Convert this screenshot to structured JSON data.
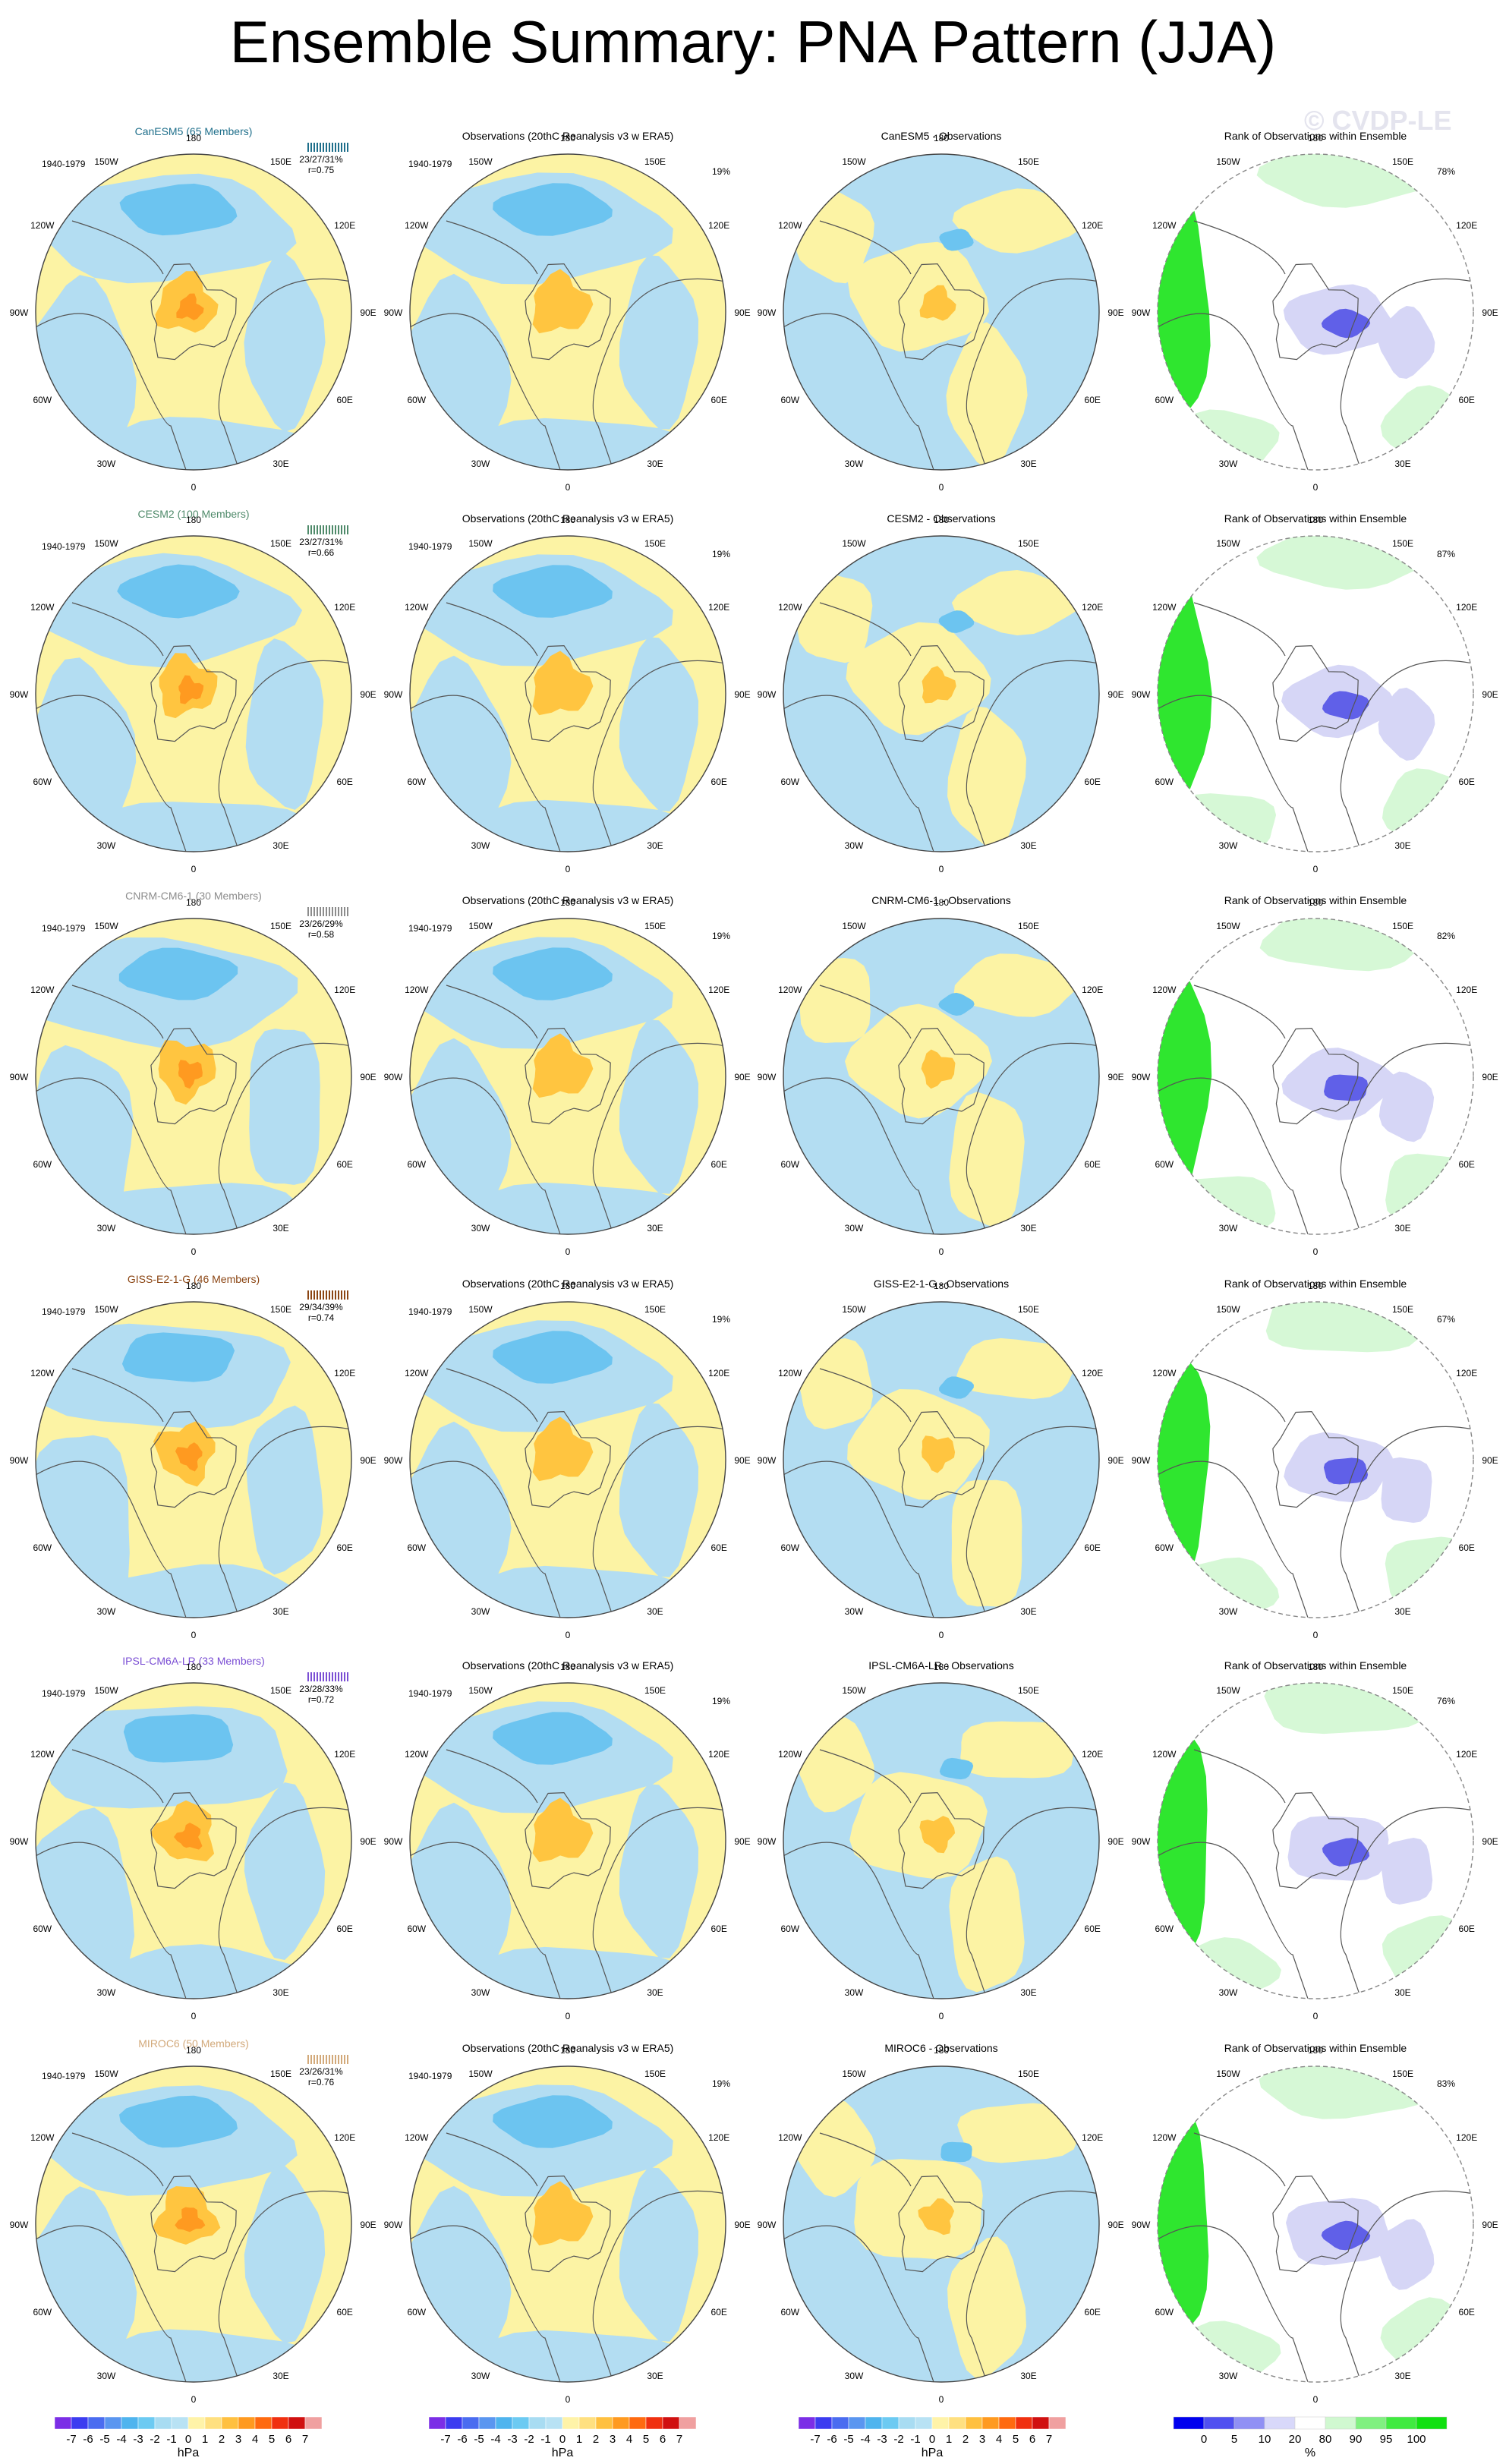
{
  "title": "Ensemble Summary: PNA Pattern (JJA)",
  "watermark": "© CVDP-LE",
  "period": "1940-1979",
  "pct_observations": "19%",
  "obs_title": "Observations (20thC Reanalysis v3 w ERA5)",
  "rank_title": "Rank of Observations within Ensemble",
  "longitude_labels": [
    "180",
    "150E",
    "120E",
    "90E",
    "60E",
    "30E",
    "0",
    "30W",
    "60W",
    "90W",
    "120W",
    "150W"
  ],
  "models": [
    {
      "name": "CanESM5",
      "label": "CanESM5 (65 Members)",
      "diff_title": "CanESM5 - Observations",
      "stats": "23/27/31%",
      "r": "r=0.75",
      "rank_pct": "78%",
      "color": "#1f6f8b"
    },
    {
      "name": "CESM2",
      "label": "CESM2 (100 Members)",
      "diff_title": "CESM2 - Observations",
      "stats": "23/27/31%",
      "r": "r=0.66",
      "rank_pct": "87%",
      "color": "#4f8a6a"
    },
    {
      "name": "CNRM-CM6-1",
      "label": "CNRM-CM6-1 (30 Members)",
      "diff_title": "CNRM-CM6-1 - Observations",
      "stats": "23/26/29%",
      "r": "r=0.58",
      "rank_pct": "82%",
      "color": "#8c8c8c"
    },
    {
      "name": "GISS-E2-1-G",
      "label": "GISS-E2-1-G (46 Members)",
      "diff_title": "GISS-E2-1-G - Observations",
      "stats": "29/34/39%",
      "r": "r=0.74",
      "rank_pct": "67%",
      "color": "#8b4513"
    },
    {
      "name": "IPSL-CM6A-LR",
      "label": "IPSL-CM6A-LR (33 Members)",
      "diff_title": "IPSL-CM6A-LR - Observations",
      "stats": "23/28/33%",
      "r": "r=0.72",
      "rank_pct": "76%",
      "color": "#7b4fd4"
    },
    {
      "name": "MIROC6",
      "label": "MIROC6 (50 Members)",
      "diff_title": "MIROC6 - Observations",
      "stats": "23/26/31%",
      "r": "r=0.76",
      "rank_pct": "83%",
      "color": "#d2a97a"
    }
  ],
  "colorbar_hpa": {
    "unit": "hPa",
    "labels": [
      "-7",
      "-6",
      "-5",
      "-4",
      "-3",
      "-2",
      "-1",
      "0",
      "1",
      "2",
      "3",
      "4",
      "5",
      "6",
      "7"
    ],
    "colors": [
      "#7b2ee6",
      "#3c3cf0",
      "#4a6cf0",
      "#5a96f0",
      "#4fb4ee",
      "#6ccaf2",
      "#a8dcf2",
      "#b8e2f4",
      "#fff3a8",
      "#ffe080",
      "#ffc040",
      "#ff9a20",
      "#ff6a10",
      "#f03010",
      "#d01010",
      "#f0a0a0"
    ]
  },
  "colorbar_rank": {
    "unit": "%",
    "labels": [
      "0",
      "5",
      "10",
      "20",
      "80",
      "90",
      "95",
      "100"
    ],
    "colors": [
      "#0000ee",
      "#5050f0",
      "#9090f4",
      "#d8d8fa",
      "#ffffff",
      "#d0f8d0",
      "#80f080",
      "#40ea40",
      "#10e010"
    ]
  }
}
